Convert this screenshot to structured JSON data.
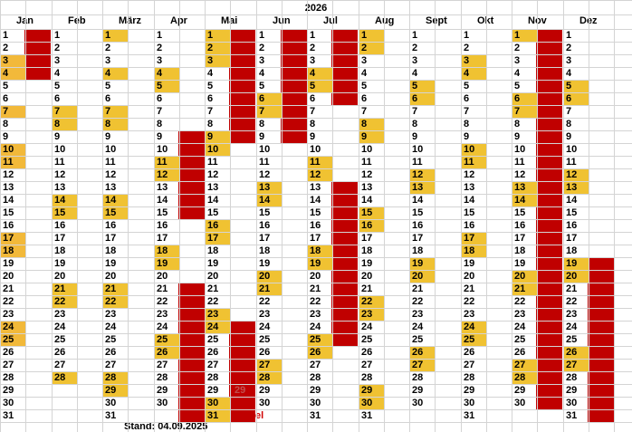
{
  "sheet": {
    "title": "2026",
    "months": [
      {
        "label": "Jan",
        "days": 31,
        "yellow": [
          3,
          4,
          7,
          10,
          11,
          17,
          18,
          24,
          25
        ],
        "yellow_style": "dark"
      },
      {
        "label": "Feb",
        "days": 28,
        "yellow": [
          7,
          8,
          14,
          15,
          21,
          22,
          28
        ]
      },
      {
        "label": "März",
        "days": 31,
        "yellow": [
          1,
          4,
          7,
          8,
          14,
          15,
          21,
          22,
          28,
          29
        ]
      },
      {
        "label": "Apr",
        "days": 30,
        "yellow": [
          4,
          5,
          11,
          12,
          18,
          19,
          25,
          26
        ]
      },
      {
        "label": "Mai",
        "days": 31,
        "yellow": [
          1,
          2,
          3,
          9,
          10,
          16,
          17,
          23,
          24,
          30,
          31
        ]
      },
      {
        "label": "Jun",
        "days": 30,
        "yellow": [
          6,
          7,
          13,
          14,
          20,
          21,
          27,
          28
        ]
      },
      {
        "label": "Jul",
        "days": 31,
        "yellow": [
          4,
          5,
          11,
          12,
          18,
          19,
          25,
          26
        ]
      },
      {
        "label": "Aug",
        "days": 31,
        "yellow": [
          1,
          2,
          8,
          9,
          15,
          16,
          22,
          23,
          29,
          30
        ]
      },
      {
        "label": "Sept",
        "days": 30,
        "yellow": [
          5,
          6,
          12,
          13,
          19,
          20,
          26,
          27
        ]
      },
      {
        "label": "Okt",
        "days": 31,
        "yellow": [
          3,
          4,
          10,
          11,
          17,
          18,
          24,
          25
        ]
      },
      {
        "label": "Nov",
        "days": 30,
        "yellow": [
          1,
          6,
          7,
          13,
          14,
          20,
          21,
          27,
          28
        ]
      },
      {
        "label": "Dez",
        "days": 31,
        "yellow": [
          5,
          6,
          12,
          13,
          19,
          20,
          26,
          27
        ]
      }
    ],
    "red_blocks": [
      {
        "month": "Jan",
        "from": 1,
        "to": 4
      },
      {
        "month": "Apr",
        "from": 9,
        "to": 15
      },
      {
        "month": "Apr",
        "from": 21,
        "to": 31
      },
      {
        "month": "Mai",
        "from": 1,
        "to": 9
      },
      {
        "month": "Mai",
        "from": 24,
        "to": 31
      },
      {
        "month": "Jun",
        "from": 1,
        "to": 9
      },
      {
        "month": "Jul",
        "from": 1,
        "to": 6
      },
      {
        "month": "Jul",
        "from": 13,
        "to": 25
      },
      {
        "month": "Nov",
        "from": 1,
        "to": 30
      },
      {
        "month": "Dez",
        "from": 19,
        "to": 31
      }
    ],
    "mai_29_note": "29",
    "jun_31_note": "el",
    "stand": "Stand: 04.09.2025",
    "colors": {
      "red": "#c00000",
      "yellow": "#f0c232",
      "yellow_dark": "#f2b93a",
      "grid": "#d4d4d4"
    }
  }
}
